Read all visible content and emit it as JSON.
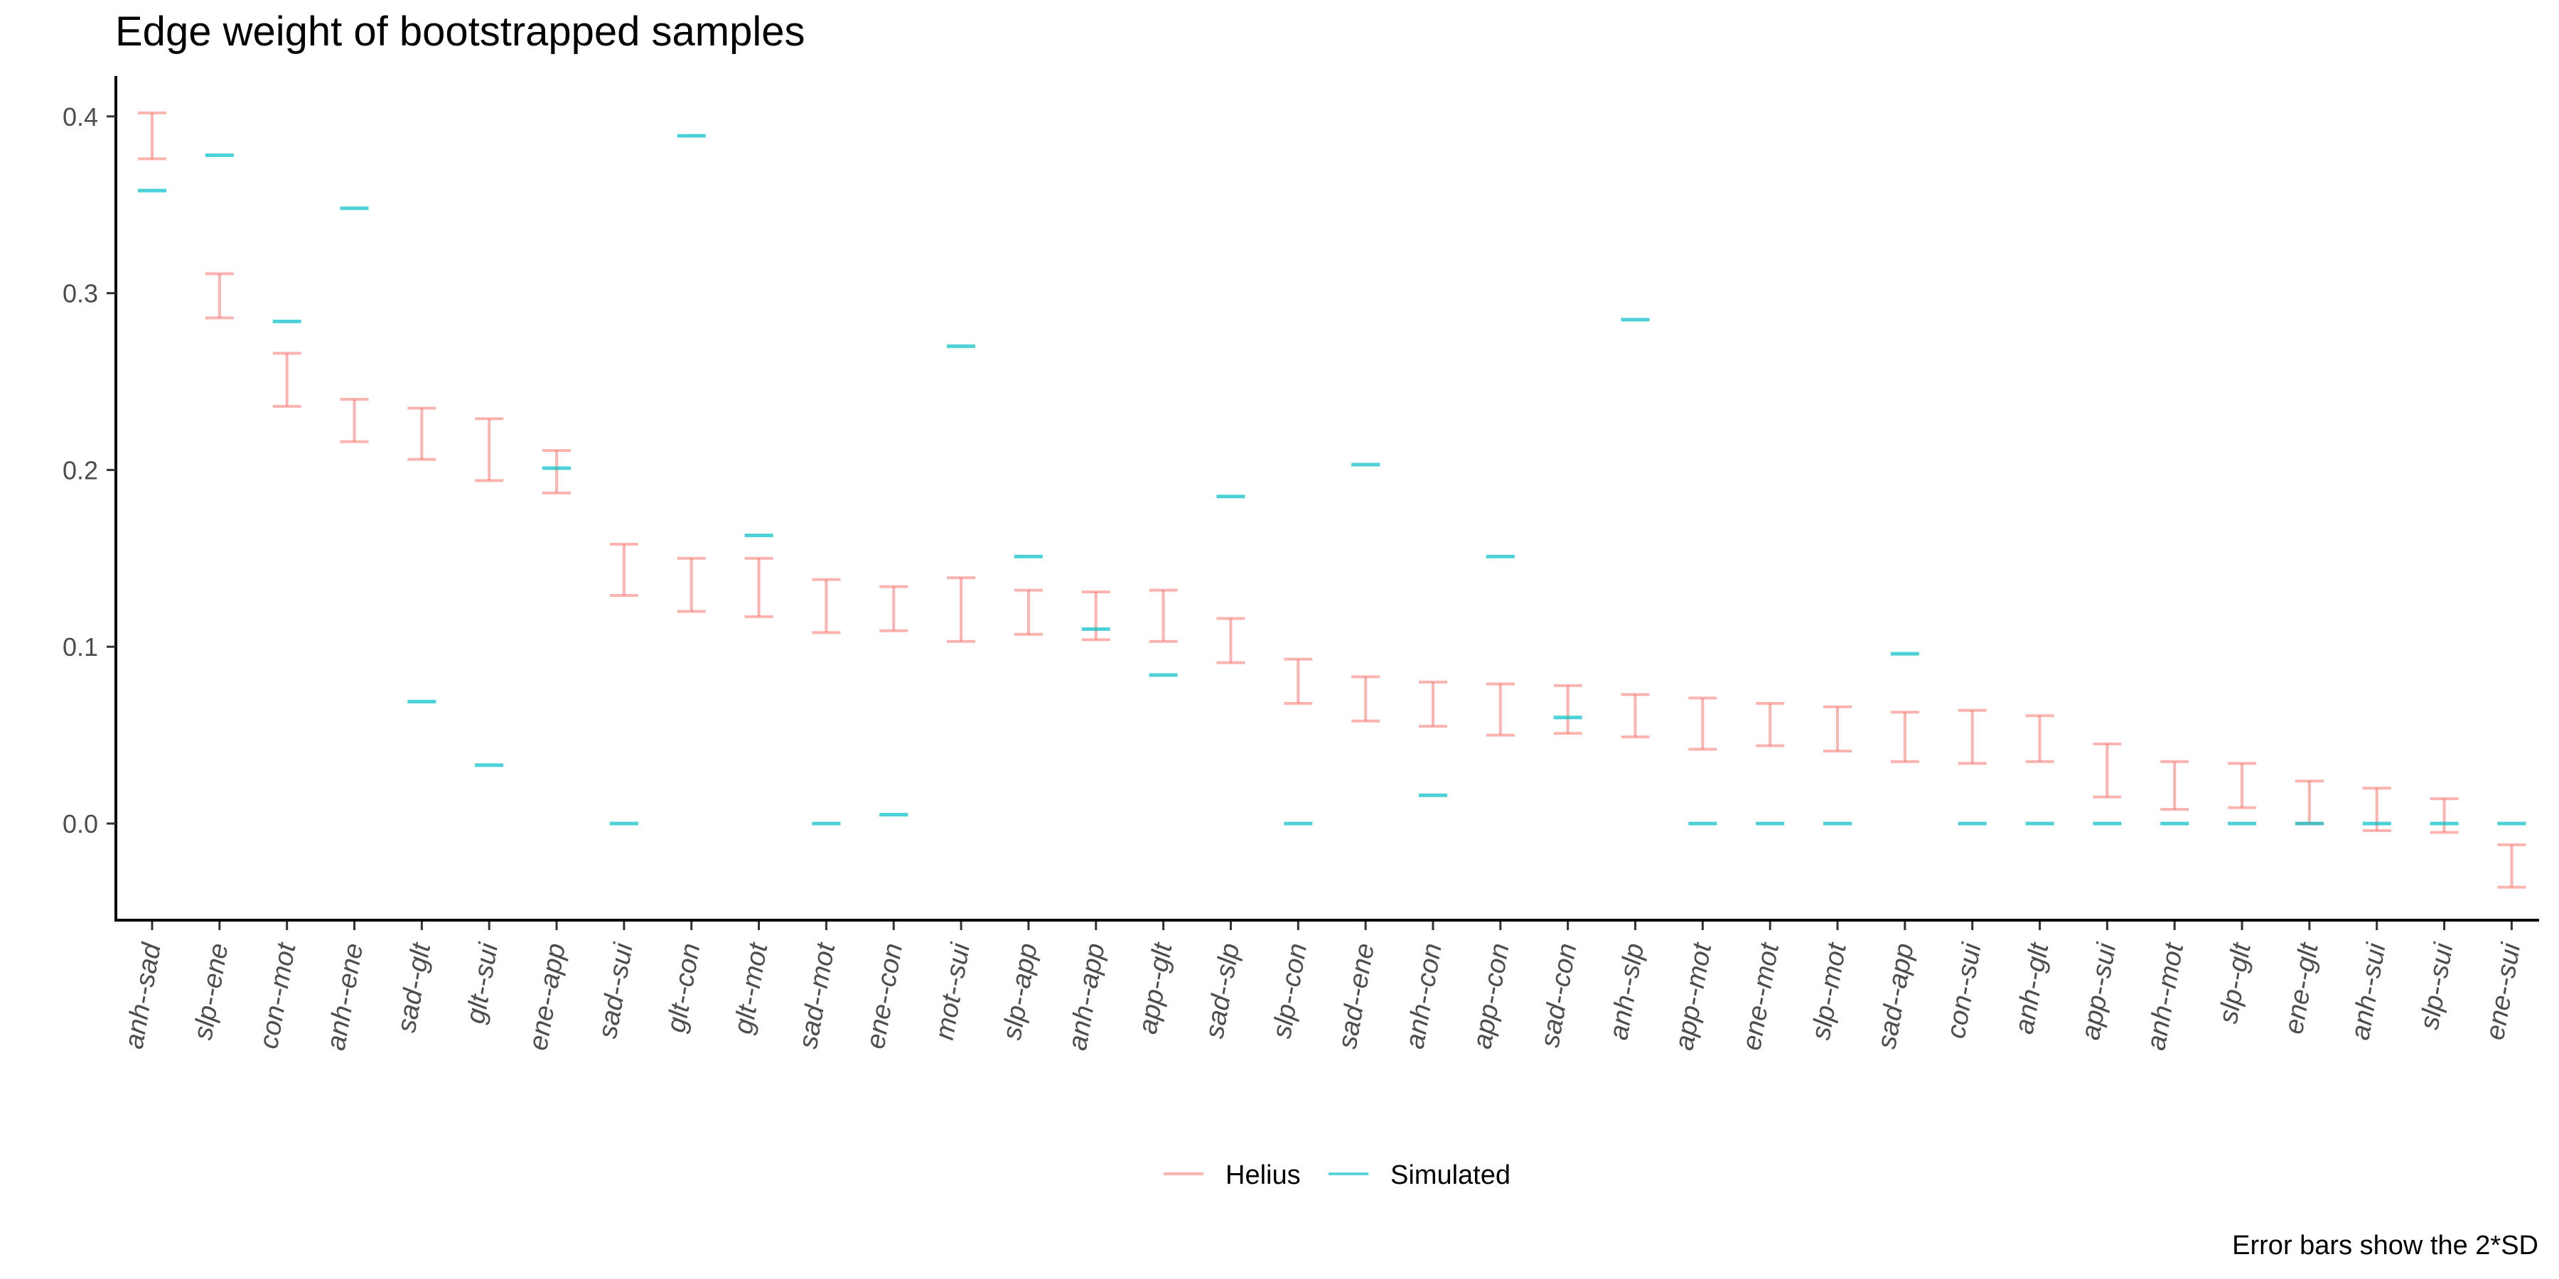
{
  "chart_data": {
    "type": "errorbar",
    "title": "Edge weight of bootstrapped samples",
    "caption": "Error bars show the 2*SD",
    "xlabel": "",
    "ylabel": "",
    "ylim": [
      -0.057,
      0.422
    ],
    "yticks": [
      0.0,
      0.1,
      0.2,
      0.3,
      0.4
    ],
    "ytick_labels": [
      "0.0",
      "0.1",
      "0.2",
      "0.3",
      "0.4"
    ],
    "grid": false,
    "legend_position": "bottom",
    "categories": [
      "anh--sad",
      "slp--ene",
      "con--mot",
      "anh--ene",
      "sad--glt",
      "glt--sui",
      "ene--app",
      "sad--sui",
      "glt--con",
      "glt--mot",
      "sad--mot",
      "ene--con",
      "mot--sui",
      "slp--app",
      "anh--app",
      "app--glt",
      "sad--slp",
      "slp--con",
      "sad--ene",
      "anh--con",
      "app--con",
      "sad--con",
      "anh--slp",
      "app--mot",
      "ene--mot",
      "slp--mot",
      "sad--app",
      "con--sui",
      "anh--glt",
      "app--sui",
      "anh--mot",
      "slp--glt",
      "ene--glt",
      "anh--sui",
      "slp--sui",
      "ene--sui"
    ],
    "series": [
      {
        "name": "Helius",
        "color": "#F8766D",
        "kind": "errorbar",
        "lower": [
          0.376,
          0.286,
          0.236,
          0.216,
          0.206,
          0.194,
          0.187,
          0.129,
          0.12,
          0.117,
          0.108,
          0.109,
          0.103,
          0.107,
          0.104,
          0.103,
          0.091,
          0.068,
          0.058,
          0.055,
          0.05,
          0.051,
          0.049,
          0.042,
          0.044,
          0.041,
          0.035,
          0.034,
          0.035,
          0.015,
          0.008,
          0.009,
          0.0,
          -0.004,
          -0.005,
          -0.036
        ],
        "upper": [
          0.402,
          0.311,
          0.266,
          0.24,
          0.235,
          0.229,
          0.211,
          0.158,
          0.15,
          0.15,
          0.138,
          0.134,
          0.139,
          0.132,
          0.131,
          0.132,
          0.116,
          0.093,
          0.083,
          0.08,
          0.079,
          0.078,
          0.073,
          0.071,
          0.068,
          0.066,
          0.063,
          0.064,
          0.061,
          0.045,
          0.035,
          0.034,
          0.024,
          0.02,
          0.014,
          -0.012
        ]
      },
      {
        "name": "Simulated",
        "color": "#00BFC4",
        "kind": "point",
        "values": [
          0.358,
          0.378,
          0.284,
          0.348,
          0.069,
          0.033,
          0.201,
          0.0,
          0.389,
          0.163,
          0.0,
          0.005,
          0.27,
          0.151,
          0.11,
          0.084,
          0.185,
          0.0,
          0.203,
          0.016,
          0.151,
          0.06,
          0.285,
          0.0,
          0.0,
          0.0,
          0.096,
          0.0,
          0.0,
          0.0,
          0.0,
          0.0,
          0.0,
          0.0,
          0.0,
          0.0
        ]
      }
    ]
  }
}
